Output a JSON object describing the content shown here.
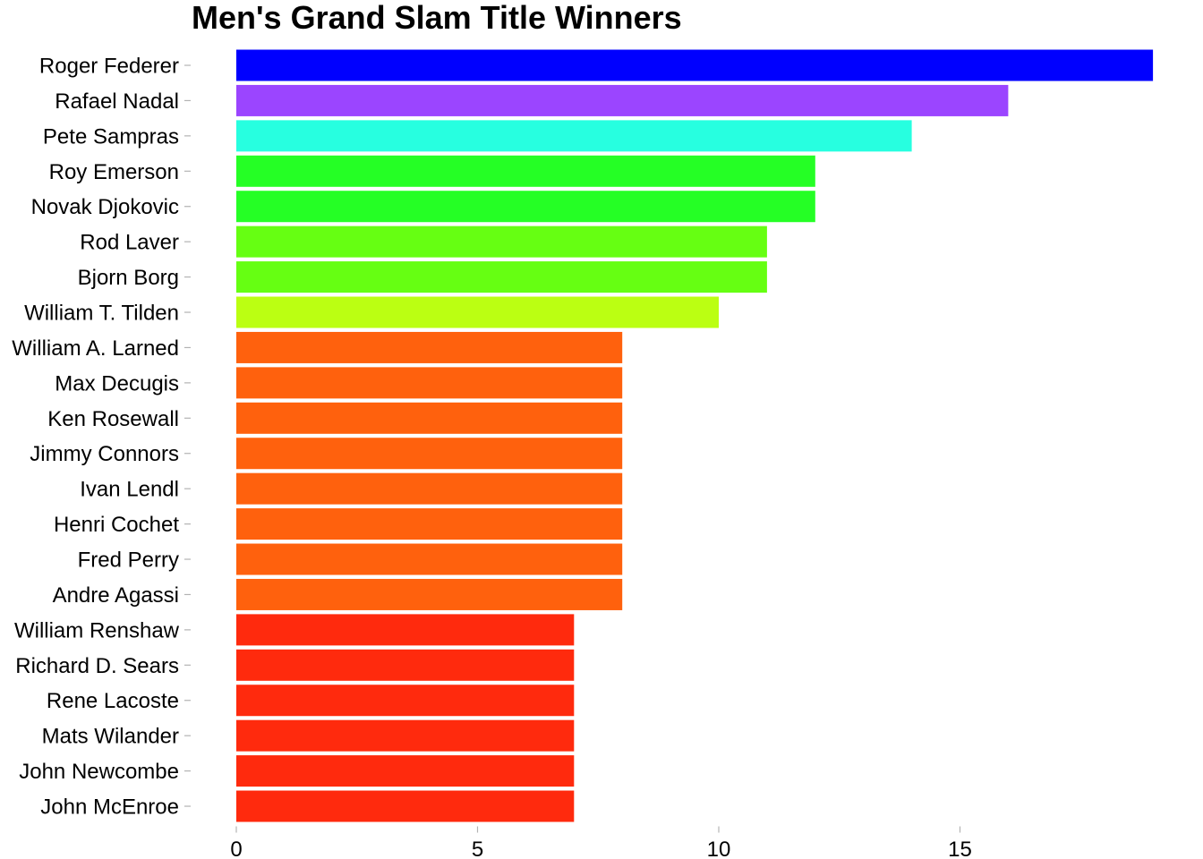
{
  "chart_data": {
    "type": "bar",
    "orientation": "horizontal",
    "title": "Men's Grand Slam Title Winners",
    "xlabel": "",
    "ylabel": "",
    "categories": [
      "Roger Federer",
      "Rafael Nadal",
      "Pete Sampras",
      "Roy Emerson",
      "Novak Djokovic",
      "Rod Laver",
      "Bjorn Borg",
      "William T. Tilden",
      "William A. Larned",
      "Max Decugis",
      "Ken Rosewall",
      "Jimmy Connors",
      "Ivan Lendl",
      "Henri Cochet",
      "Fred Perry",
      "Andre Agassi",
      "William Renshaw",
      "Richard D. Sears",
      "Rene Lacoste",
      "Mats Wilander",
      "John Newcombe",
      "John McEnroe"
    ],
    "values": [
      19,
      16,
      14,
      12,
      12,
      11,
      11,
      10,
      8,
      8,
      8,
      8,
      8,
      8,
      8,
      8,
      7,
      7,
      7,
      7,
      7,
      7
    ],
    "colors": [
      "#0000ff",
      "#9b45ff",
      "#27ffe0",
      "#25ff25",
      "#25ff25",
      "#66ff12",
      "#66ff12",
      "#bbff12",
      "#ff610d",
      "#ff610d",
      "#ff610d",
      "#ff610d",
      "#ff610d",
      "#ff610d",
      "#ff610d",
      "#ff610d",
      "#ff2a0d",
      "#ff2a0d",
      "#ff2a0d",
      "#ff2a0d",
      "#ff2a0d",
      "#ff2a0d"
    ],
    "xlim": [
      0,
      19
    ],
    "xticks": [
      0,
      5,
      10,
      15
    ],
    "xtick_labels": [
      "0",
      "5",
      "10",
      "15"
    ],
    "grid": false,
    "legend": "none"
  }
}
